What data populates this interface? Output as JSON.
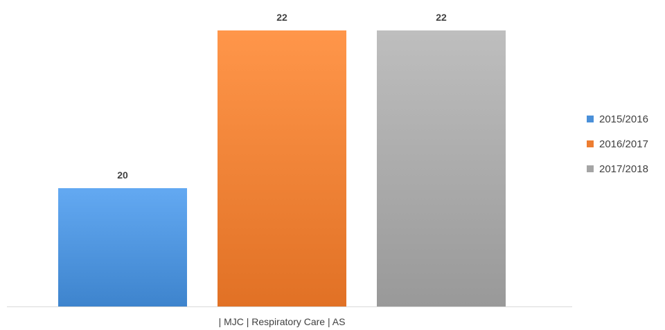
{
  "chart_data": {
    "type": "bar",
    "categories": [
      "| MJC | Respiratory Care | AS"
    ],
    "series": [
      {
        "name": "2015/2016",
        "values": [
          20
        ],
        "color": "#4a90d9"
      },
      {
        "name": "2016/2017",
        "values": [
          22
        ],
        "color": "#ed7d31"
      },
      {
        "name": "2017/2018",
        "values": [
          22
        ],
        "color": "#a5a5a5"
      }
    ],
    "ylim": [
      18.5,
      22.5
    ],
    "grid": false,
    "legend_position": "right",
    "data_labels": true
  }
}
